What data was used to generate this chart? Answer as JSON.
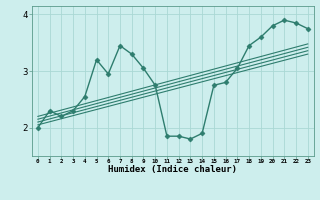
{
  "xlabel": "Humidex (Indice chaleur)",
  "ylabel": "",
  "bg_color": "#cdeeed",
  "line_color": "#2e7d6e",
  "grid_color": "#aad8d4",
  "x_main": [
    0,
    1,
    2,
    3,
    4,
    5,
    6,
    7,
    8,
    9,
    10,
    11,
    12,
    13,
    14,
    15,
    16,
    17,
    18,
    19,
    20,
    21,
    22,
    23
  ],
  "y_main": [
    2.0,
    2.3,
    2.2,
    2.3,
    2.55,
    3.2,
    2.95,
    3.45,
    3.3,
    3.05,
    2.75,
    1.85,
    1.85,
    1.8,
    1.9,
    2.75,
    2.8,
    3.05,
    3.45,
    3.6,
    3.8,
    3.9,
    3.85,
    3.75
  ],
  "reg_lines": [
    {
      "x": [
        0,
        23
      ],
      "y": [
        2.05,
        3.3
      ]
    },
    {
      "x": [
        0,
        23
      ],
      "y": [
        2.1,
        3.36
      ]
    },
    {
      "x": [
        0,
        23
      ],
      "y": [
        2.15,
        3.42
      ]
    },
    {
      "x": [
        0,
        23
      ],
      "y": [
        2.2,
        3.48
      ]
    }
  ],
  "xlim": [
    -0.5,
    23.5
  ],
  "ylim": [
    1.5,
    4.15
  ],
  "yticks": [
    2,
    3,
    4
  ],
  "xticks": [
    0,
    1,
    2,
    3,
    4,
    5,
    6,
    7,
    8,
    9,
    10,
    11,
    12,
    13,
    14,
    15,
    16,
    17,
    18,
    19,
    20,
    21,
    22,
    23
  ],
  "marker": "D",
  "markersize": 2.5,
  "linewidth": 1.0,
  "reg_linewidth": 0.8
}
